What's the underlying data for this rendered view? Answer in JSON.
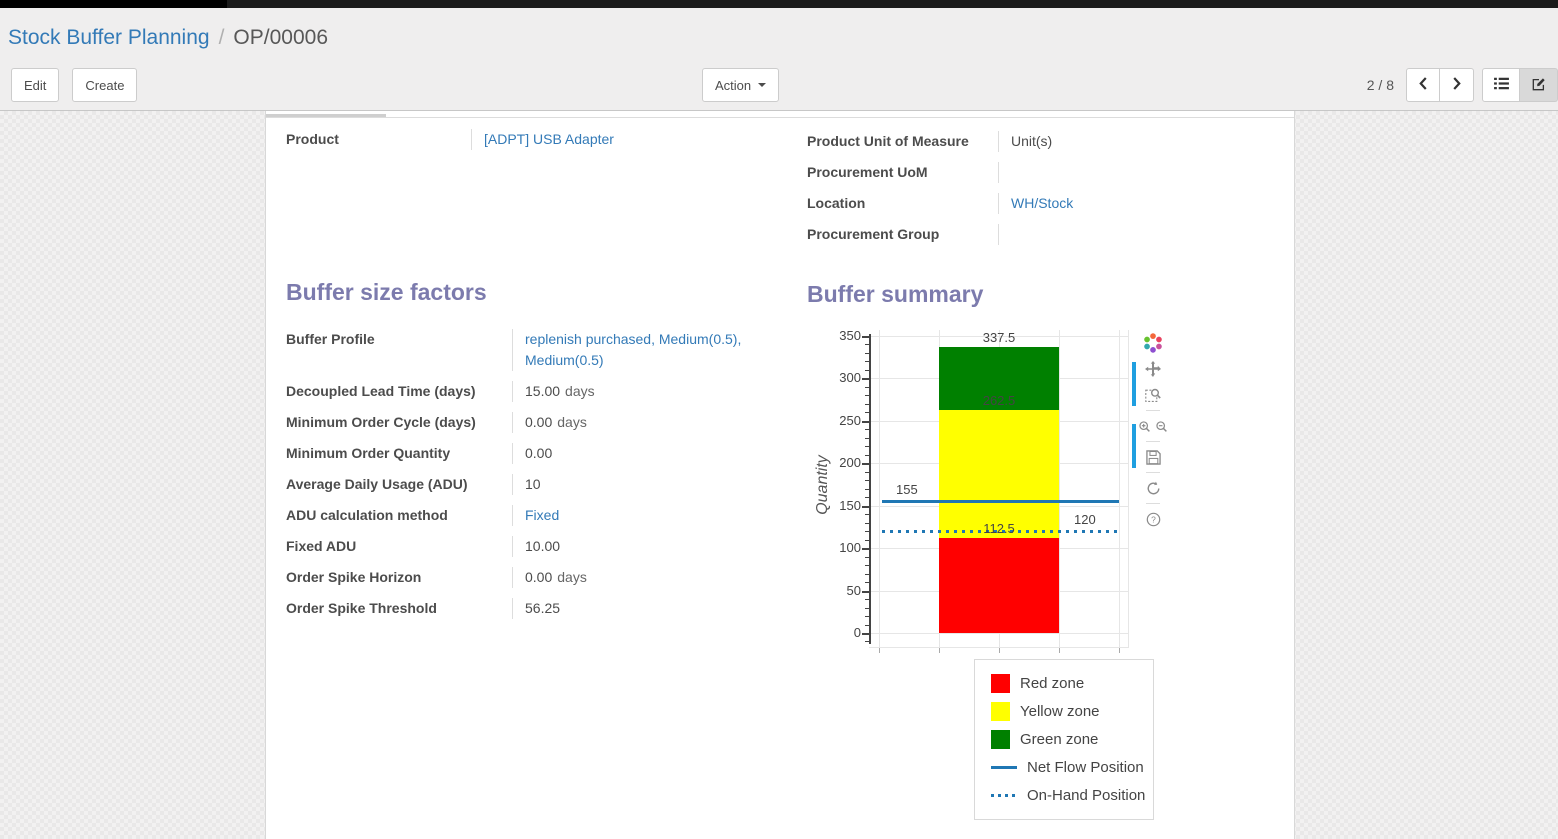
{
  "breadcrumb": {
    "parent": "Stock Buffer Planning",
    "separator": "/",
    "current": "OP/00006"
  },
  "actions": {
    "edit": "Edit",
    "create": "Create",
    "action": "Action"
  },
  "pager": {
    "value": "2 / 8"
  },
  "record": {
    "left": [
      {
        "label": "Product",
        "value": "[ADPT] USB Adapter",
        "link": true,
        "suffix": ""
      }
    ],
    "right": [
      {
        "label": "Product Unit of Measure",
        "value": "Unit(s)",
        "link": false,
        "suffix": ""
      },
      {
        "label": "Procurement UoM",
        "value": "",
        "link": false,
        "suffix": ""
      },
      {
        "label": "Location",
        "value": "WH/Stock",
        "link": true,
        "suffix": ""
      },
      {
        "label": "Procurement Group",
        "value": "",
        "link": false,
        "suffix": ""
      }
    ]
  },
  "buffer_factors": {
    "title": "Buffer size factors",
    "rows": [
      {
        "label": "Buffer Profile",
        "value": "replenish purchased, Medium(0.5), Medium(0.5)",
        "link": true,
        "suffix": ""
      },
      {
        "label": "Decoupled Lead Time (days)",
        "value": "15.00",
        "link": false,
        "suffix": "days"
      },
      {
        "label": "Minimum Order Cycle (days)",
        "value": "0.00",
        "link": false,
        "suffix": "days"
      },
      {
        "label": "Minimum Order Quantity",
        "value": "0.00",
        "link": false,
        "suffix": ""
      },
      {
        "label": "Average Daily Usage (ADU)",
        "value": "10",
        "link": false,
        "suffix": ""
      },
      {
        "label": "ADU calculation method",
        "value": "Fixed",
        "link": true,
        "suffix": ""
      },
      {
        "label": "Fixed ADU",
        "value": "10.00",
        "link": false,
        "suffix": ""
      },
      {
        "label": "Order Spike Horizon",
        "value": "0.00",
        "link": false,
        "suffix": "days"
      },
      {
        "label": "Order Spike Threshold",
        "value": "56.25",
        "link": false,
        "suffix": ""
      }
    ]
  },
  "buffer_summary": {
    "title": "Buffer summary"
  },
  "chart_data": {
    "type": "bar",
    "title": "",
    "xlabel": "",
    "ylabel": "Quantity",
    "ylim": [
      0,
      350
    ],
    "yticks": [
      0,
      50,
      100,
      150,
      200,
      250,
      300,
      350
    ],
    "minor_tick_step": 10,
    "grid": true,
    "zones": [
      {
        "name": "Red zone",
        "color": "#ff0000",
        "from": 0,
        "to": 112.5,
        "label": "112.5"
      },
      {
        "name": "Yellow zone",
        "color": "#ffff00",
        "from": 112.5,
        "to": 262.5,
        "label": "262.5"
      },
      {
        "name": "Green zone",
        "color": "#008000",
        "from": 262.5,
        "to": 337.5,
        "label": "337.5"
      }
    ],
    "lines": [
      {
        "name": "Net Flow Position",
        "value": 155,
        "label": "155",
        "style": "solid",
        "color": "#1f77b4",
        "label_side": "left"
      },
      {
        "name": "On-Hand Position",
        "value": 120,
        "label": "120",
        "style": "dotted",
        "color": "#1f77b4",
        "label_side": "right"
      }
    ],
    "legend_position": "bottom-right",
    "legend": [
      {
        "label": "Red zone",
        "swatch": "square",
        "color": "#ff0000"
      },
      {
        "label": "Yellow zone",
        "swatch": "square",
        "color": "#ffff00"
      },
      {
        "label": "Green zone",
        "swatch": "square",
        "color": "#008000"
      },
      {
        "label": "Net Flow Position",
        "swatch": "line",
        "color": "#1f77b4"
      },
      {
        "label": "On-Hand Position",
        "swatch": "dots",
        "color": "#1f77b4"
      }
    ]
  },
  "modebar": {
    "rows": [
      [
        "plotly-logo"
      ],
      [
        "pan"
      ],
      [
        "box-zoom"
      ],
      [
        "zoom-in",
        "zoom-out"
      ],
      [
        "save"
      ],
      [
        "reset"
      ],
      [
        "help"
      ]
    ],
    "separators_after": [
      2,
      3,
      4,
      5
    ]
  },
  "colors": {
    "accent_heading": "#7c7bad",
    "link": "#337ab7",
    "zone_red": "#ff0000",
    "zone_yellow": "#ffff00",
    "zone_green": "#008000",
    "flow_line": "#1f77b4",
    "modebar_indicator": "#1f9fe0"
  }
}
